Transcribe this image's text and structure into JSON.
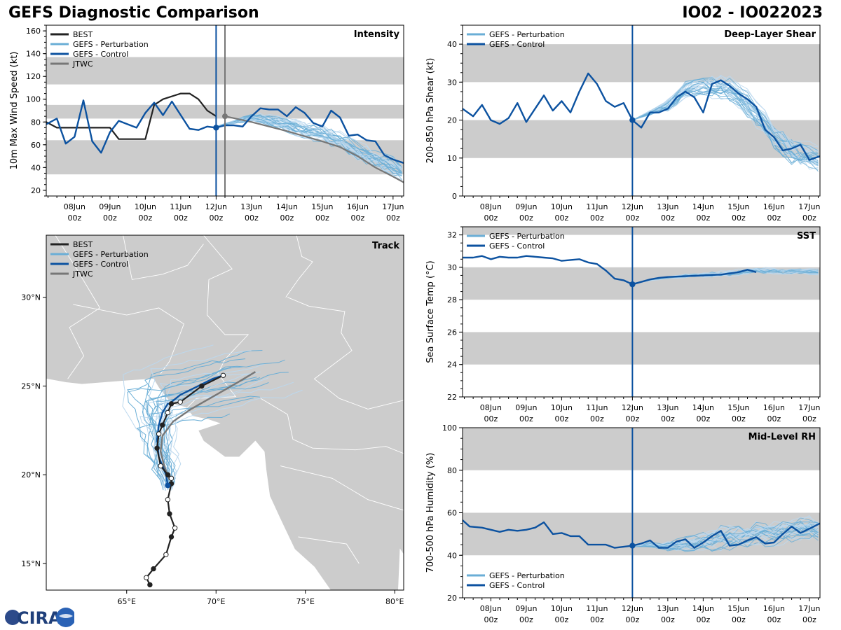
{
  "header": {
    "title_left": "GEFS Diagnostic Comparison",
    "title_right": "IO02 - IO022023"
  },
  "logo": {
    "text": "CIRA"
  },
  "colors": {
    "best": "#222222",
    "perturbation": "#6aaed6",
    "perturbation_light": "#bcd8ee",
    "control": "#0c52a0",
    "jtwc": "#777777",
    "band": "#cccccc",
    "land": "#cccccc"
  },
  "time_axis": {
    "start_day": 7.2,
    "end_day": 17.3,
    "init_day": 12.0,
    "ticks": [
      {
        "day": 8,
        "l1": "08Jun",
        "l2": "00z"
      },
      {
        "day": 9,
        "l1": "09Jun",
        "l2": "00z"
      },
      {
        "day": 10,
        "l1": "10Jun",
        "l2": "00z"
      },
      {
        "day": 11,
        "l1": "11Jun",
        "l2": "00z"
      },
      {
        "day": 12,
        "l1": "12Jun",
        "l2": "00z"
      },
      {
        "day": 13,
        "l1": "13Jun",
        "l2": "00z"
      },
      {
        "day": 14,
        "l1": "14Jun",
        "l2": "00z"
      },
      {
        "day": 15,
        "l1": "15Jun",
        "l2": "00z"
      },
      {
        "day": 16,
        "l1": "16Jun",
        "l2": "00z"
      },
      {
        "day": 17,
        "l1": "17Jun",
        "l2": "00z"
      }
    ]
  },
  "chart_data": [
    {
      "id": "intensity",
      "type": "line",
      "title": "Intensity",
      "ylabel": "10m Max Wind Speed (kt)",
      "ylim": [
        15,
        165
      ],
      "yticks": [
        20,
        40,
        60,
        80,
        100,
        120,
        140,
        160
      ],
      "bands": [
        [
          34,
          64
        ],
        [
          83,
          95
        ],
        [
          113,
          137
        ]
      ],
      "legend": [
        "BEST",
        "GEFS - Perturbation",
        "GEFS - Control",
        "JTWC"
      ],
      "legend_position": "top-left",
      "vlines": [
        {
          "day": 12.0,
          "role": "control"
        },
        {
          "day": 12.25,
          "role": "jtwc"
        }
      ],
      "best": {
        "x": [
          7.2,
          7.5,
          8.0,
          8.5,
          9.0,
          9.25,
          9.5,
          10.0,
          10.25,
          10.5,
          11.0,
          11.25,
          11.5,
          11.75,
          12.0
        ],
        "y": [
          80,
          75,
          75,
          75,
          75,
          65,
          65,
          65,
          95,
          100,
          105,
          105,
          100,
          90,
          85
        ]
      },
      "control": {
        "x": [
          7.2,
          7.5,
          7.75,
          8.0,
          8.25,
          8.5,
          8.75,
          9.0,
          9.25,
          9.5,
          9.75,
          10.0,
          10.25,
          10.5,
          10.75,
          11.0,
          11.25,
          11.5,
          11.75,
          12.0,
          12.25,
          12.5,
          12.75,
          13.0,
          13.25,
          13.5,
          13.75,
          14.0,
          14.25,
          14.5,
          14.75,
          15.0,
          15.25,
          15.5,
          15.75,
          16.0,
          16.25,
          16.5,
          16.75,
          17.0,
          17.3
        ],
        "y": [
          78,
          83,
          61,
          67,
          99,
          63,
          53,
          71,
          81,
          78,
          75,
          88,
          97,
          86,
          98,
          86,
          74,
          73,
          76,
          75,
          77,
          77,
          76,
          85,
          92,
          91,
          91,
          85,
          93,
          88,
          79,
          76,
          90,
          84,
          68,
          69,
          64,
          63,
          51,
          47,
          44
        ]
      },
      "jtwc": {
        "x": [
          12.25,
          13.0,
          14.0,
          15.0,
          15.5,
          16.0,
          16.5,
          17.0,
          17.3
        ],
        "y": [
          85,
          80,
          72,
          63,
          58,
          50,
          40,
          32,
          27
        ]
      },
      "perturbation": {
        "base": [
          76,
          80,
          84,
          82,
          78,
          74,
          70,
          65,
          55,
          48,
          42,
          36
        ],
        "base_x": [
          12.0,
          12.5,
          13.0,
          13.5,
          14.0,
          14.5,
          15.0,
          15.5,
          16.0,
          16.5,
          17.0,
          17.3
        ],
        "members": 30,
        "spread": 14,
        "seed": 3
      },
      "init_point": {
        "day": 12.0,
        "value": 75
      },
      "jtwc_point": {
        "day": 12.25,
        "value": 85
      }
    },
    {
      "id": "shear",
      "type": "line",
      "title": "Deep-Layer Shear",
      "ylabel": "200-850 hPa Shear (kt)",
      "ylim": [
        0,
        45
      ],
      "yticks": [
        0,
        10,
        20,
        30,
        40
      ],
      "bands": [
        [
          10,
          20
        ],
        [
          30,
          40
        ]
      ],
      "legend": [
        "GEFS - Perturbation",
        "GEFS - Control"
      ],
      "legend_position": "top-left",
      "vlines": [
        {
          "day": 12.0,
          "role": "control"
        }
      ],
      "control": {
        "x": [
          7.2,
          7.5,
          7.75,
          8.0,
          8.25,
          8.5,
          8.75,
          9.0,
          9.25,
          9.5,
          9.75,
          10.0,
          10.25,
          10.5,
          10.75,
          11.0,
          11.25,
          11.5,
          11.75,
          12.0,
          12.25,
          12.5,
          12.75,
          13.0,
          13.25,
          13.5,
          13.75,
          14.0,
          14.25,
          14.5,
          14.75,
          15.0,
          15.25,
          15.5,
          15.75,
          16.0,
          16.25,
          16.5,
          16.75,
          17.0,
          17.3
        ],
        "y": [
          23,
          21,
          24,
          20,
          19,
          20.5,
          24.5,
          19.5,
          23,
          26.5,
          22.5,
          25,
          22,
          27.5,
          32.3,
          29.5,
          25,
          23.5,
          24.5,
          20,
          18,
          22,
          22,
          23,
          26,
          27.5,
          26,
          22,
          29.5,
          30.5,
          29,
          27,
          25.5,
          23.5,
          17.5,
          15.5,
          12,
          12.5,
          13.5,
          9.5,
          10.5
        ]
      },
      "perturbation": {
        "base": [
          20,
          22,
          24,
          28,
          29,
          29,
          27,
          22,
          16,
          12,
          10
        ],
        "base_x": [
          12.0,
          12.5,
          13.0,
          13.5,
          14.0,
          14.5,
          15.0,
          15.5,
          16.0,
          16.5,
          17.3
        ],
        "members": 30,
        "spread": 6,
        "seed": 7
      },
      "init_point": {
        "day": 12.0,
        "value": 20
      }
    },
    {
      "id": "track",
      "type": "scatter",
      "title": "Track",
      "legend": [
        "BEST",
        "GEFS - Perturbation",
        "GEFS - Control",
        "JTWC"
      ],
      "legend_position": "top-left",
      "xlim": [
        60.5,
        80.5
      ],
      "ylim": [
        13.5,
        33.5
      ],
      "xticks": [
        {
          "v": 65,
          "label": "65°E"
        },
        {
          "v": 70,
          "label": "70°E"
        },
        {
          "v": 75,
          "label": "75°E"
        },
        {
          "v": 80,
          "label": "80°E"
        }
      ],
      "yticks": [
        {
          "v": 15,
          "label": "15°N"
        },
        {
          "v": 20,
          "label": "20°N"
        },
        {
          "v": 25,
          "label": "25°N"
        },
        {
          "v": 30,
          "label": "30°N"
        }
      ],
      "best": {
        "lon": [
          66.3,
          66.1,
          66.5,
          67.2,
          67.5,
          67.7,
          67.4,
          67.3,
          67.5,
          67.5,
          67.3,
          66.9,
          66.7,
          66.8,
          67.0,
          67.3,
          67.5,
          68.0,
          69.2,
          70.4
        ],
        "lat": [
          13.8,
          14.2,
          14.7,
          15.5,
          16.5,
          17.0,
          17.8,
          18.6,
          19.5,
          19.8,
          20.0,
          20.5,
          21.5,
          22.3,
          22.8,
          23.5,
          24.0,
          24.1,
          25.0,
          25.6
        ]
      },
      "control": {
        "lon": [
          67.3,
          67.2,
          67.0,
          66.8,
          66.7,
          66.8,
          67.0,
          67.3,
          67.4,
          67.5,
          68.0,
          69.0,
          69.8,
          70.4
        ],
        "lat": [
          19.4,
          20.0,
          20.5,
          21.0,
          22.0,
          22.8,
          23.5,
          24.0,
          24.0,
          24.1,
          24.5,
          25.0,
          25.4,
          25.6
        ]
      },
      "jtwc": {
        "lon": [
          67.4,
          67.1,
          66.9,
          67.0,
          67.6,
          68.6,
          70.0,
          71.2,
          72.2
        ],
        "lat": [
          19.7,
          20.5,
          21.3,
          22.2,
          23.0,
          23.7,
          24.5,
          25.2,
          25.8
        ]
      },
      "perturbation": {
        "members": 30,
        "seed": 11
      }
    },
    {
      "id": "sst",
      "type": "line",
      "title": "SST",
      "ylabel": "Sea Surface Temp (°C)",
      "ylim": [
        22,
        32.5
      ],
      "yticks": [
        22,
        24,
        26,
        28,
        30,
        32
      ],
      "bands": [
        [
          24,
          26
        ],
        [
          28,
          30
        ],
        [
          32,
          34
        ]
      ],
      "legend": [
        "GEFS - Perturbation",
        "GEFS - Control"
      ],
      "legend_position": "top-left",
      "vlines": [
        {
          "day": 12.0,
          "role": "control"
        }
      ],
      "control": {
        "x": [
          7.2,
          7.5,
          7.75,
          8.0,
          8.25,
          8.5,
          8.75,
          9.0,
          9.25,
          9.5,
          9.75,
          10.0,
          10.25,
          10.5,
          10.75,
          11.0,
          11.25,
          11.5,
          11.75,
          12.0,
          12.25,
          12.5,
          12.75,
          13.0,
          13.5,
          14.0,
          14.5,
          15.0,
          15.25,
          15.5
        ],
        "y": [
          30.6,
          30.6,
          30.7,
          30.5,
          30.65,
          30.6,
          30.6,
          30.7,
          30.65,
          30.6,
          30.55,
          30.4,
          30.45,
          30.5,
          30.3,
          30.2,
          29.8,
          29.3,
          29.2,
          28.95,
          29.1,
          29.25,
          29.35,
          29.4,
          29.45,
          29.5,
          29.55,
          29.7,
          29.85,
          29.7
        ]
      },
      "perturbation": {
        "base": [
          29.0,
          29.2,
          29.35,
          29.45,
          29.5,
          29.55,
          29.65,
          29.75,
          29.75,
          29.7,
          29.7
        ],
        "base_x": [
          12.0,
          12.5,
          13.0,
          13.5,
          14.0,
          14.5,
          15.0,
          15.5,
          16.0,
          16.5,
          17.3
        ],
        "members": 20,
        "spread": 0.4,
        "seed": 5
      },
      "init_point": {
        "day": 12.0,
        "value": 28.95
      }
    },
    {
      "id": "rh",
      "type": "line",
      "title": "Mid-Level RH",
      "ylabel": "700-500 hPa Humidity (%)",
      "ylim": [
        20,
        100
      ],
      "yticks": [
        20,
        40,
        60,
        80,
        100
      ],
      "bands": [
        [
          40,
          60
        ],
        [
          80,
          100
        ]
      ],
      "legend": [
        "GEFS - Perturbation",
        "GEFS - Control"
      ],
      "legend_position": "bottom-left",
      "vlines": [
        {
          "day": 12.0,
          "role": "control"
        }
      ],
      "control": {
        "x": [
          7.2,
          7.4,
          7.75,
          8.0,
          8.25,
          8.5,
          8.75,
          9.0,
          9.25,
          9.5,
          9.75,
          10.0,
          10.25,
          10.5,
          10.75,
          11.0,
          11.25,
          11.5,
          11.75,
          12.0,
          12.25,
          12.5,
          12.75,
          13.0,
          13.25,
          13.5,
          13.75,
          14.0,
          14.25,
          14.5,
          14.75,
          15.0,
          15.25,
          15.5,
          15.75,
          16.0,
          16.25,
          16.5,
          16.75,
          17.0,
          17.3
        ],
        "y": [
          56.5,
          53.5,
          53,
          52,
          51,
          52,
          51.5,
          52,
          53,
          55.5,
          50,
          50.5,
          49,
          49,
          45,
          45,
          45,
          43.5,
          44,
          44.5,
          45.5,
          47,
          43.5,
          43.5,
          46.5,
          47.5,
          43.5,
          46,
          49,
          51.5,
          44.5,
          45,
          47,
          48.5,
          45.5,
          46,
          50,
          53.5,
          50.5,
          52.5,
          55
        ]
      },
      "perturbation": {
        "base": [
          44,
          45,
          44,
          45,
          46,
          48,
          48,
          50,
          50,
          52,
          53,
          52
        ],
        "base_x": [
          12.0,
          12.5,
          13.0,
          13.5,
          14.0,
          14.5,
          15.0,
          15.5,
          16.0,
          16.5,
          17.0,
          17.3
        ],
        "members": 30,
        "spread": 9,
        "seed": 9
      },
      "init_point": {
        "day": 12.0,
        "value": 44.5
      }
    }
  ]
}
